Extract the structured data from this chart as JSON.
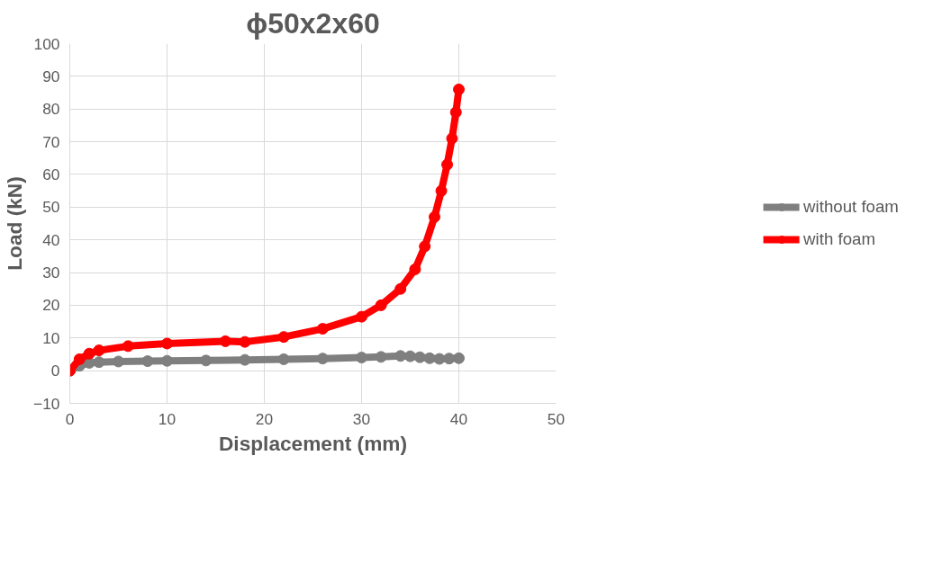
{
  "chart_data": {
    "type": "line",
    "title": "ϕ50x2x60",
    "xlabel": "Displacement (mm)",
    "ylabel": "Load (kN)",
    "xlim": [
      0,
      50
    ],
    "xticks": [
      0,
      10,
      20,
      30,
      40,
      50
    ],
    "ylim": [
      -10,
      100
    ],
    "yticks": [
      -10,
      0,
      10,
      20,
      30,
      40,
      50,
      60,
      70,
      80,
      90,
      100
    ],
    "grid": true,
    "legend": "right",
    "marker": "circle",
    "line_style": "solid",
    "series": [
      {
        "name": "without foam",
        "color": "#7f7f7f",
        "x": [
          0,
          1,
          2,
          3,
          5,
          8,
          10,
          14,
          18,
          22,
          26,
          30,
          32,
          34,
          35,
          36,
          37,
          38,
          39,
          40
        ],
        "values": [
          0,
          1.5,
          2.4,
          2.6,
          2.8,
          2.9,
          3,
          3.1,
          3.3,
          3.5,
          3.7,
          4,
          4.2,
          4.5,
          4.4,
          4.1,
          3.8,
          3.6,
          3.7,
          3.8
        ]
      },
      {
        "name": "with foam",
        "color": "#ff0000",
        "x": [
          0,
          1,
          2,
          3,
          6,
          10,
          16,
          18,
          22,
          26,
          30,
          32,
          34,
          35.5,
          36.5,
          37.5,
          38.2,
          38.8,
          39.3,
          39.7,
          40
        ],
        "values": [
          0,
          3.5,
          5.2,
          6.2,
          7.5,
          8.3,
          9,
          8.8,
          10.3,
          12.8,
          16.5,
          20,
          25,
          31,
          38,
          47,
          55,
          63,
          71,
          79,
          86
        ]
      }
    ]
  }
}
